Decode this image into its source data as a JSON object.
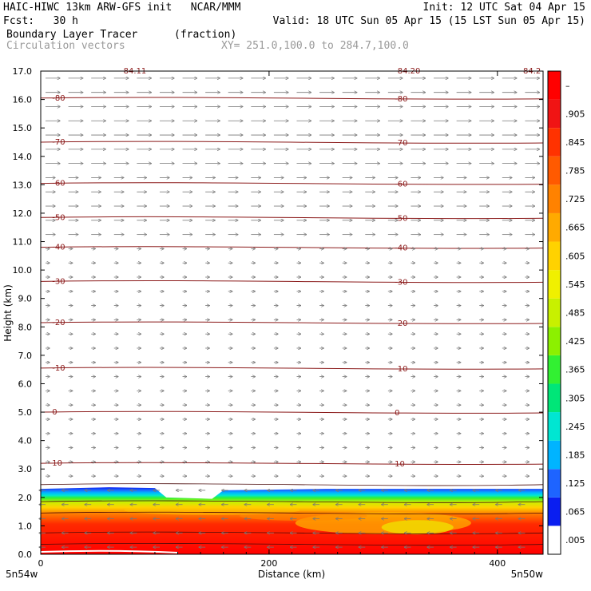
{
  "header": {
    "line1_left": "HAIC-HIWC 13km ARW-GFS init   NCAR/MMM",
    "line1_right": "Init: 12 UTC Sat 04 Apr 15",
    "line2_left": "Fcst:   30 h",
    "line2_right": "Valid: 18 UTC Sun 05 Apr 15 (15 LST Sun 05 Apr 15)",
    "field_name": "Boundary Layer Tracer",
    "field_units": "(fraction)",
    "vector_name": "Circulation vectors",
    "xy_range": "XY= 251.0,100.0 to 284.7,100.0"
  },
  "chart_data": {
    "type": "heatmap",
    "xlabel": "Distance (km)",
    "ylabel": "Height (km)",
    "xlim": [
      0,
      440
    ],
    "ylim": [
      0,
      17
    ],
    "x_ticks": [
      0,
      200,
      400
    ],
    "y_ticks": [
      "0.0",
      "1.0",
      "2.0",
      "3.0",
      "4.0",
      "5.0",
      "6.0",
      "7.0",
      "8.0",
      "9.0",
      "10.0",
      "11.0",
      "12.0",
      "13.0",
      "14.0",
      "15.0",
      "16.0",
      "17.0"
    ],
    "x_endpoint_labels": {
      "left": "5n54w",
      "right": "5n50w"
    },
    "colorbar": {
      "tick_labels": [
        ".005",
        ".065",
        ".125",
        ".185",
        ".245",
        ".305",
        ".365",
        ".425",
        ".485",
        ".545",
        ".605",
        ".665",
        ".725",
        ".785",
        ".845",
        ".905",
        "–"
      ],
      "colors": [
        "#ffffff",
        "#0a1ef0",
        "#1e64ff",
        "#00b4ff",
        "#00e6d2",
        "#00e678",
        "#32f032",
        "#8cf000",
        "#c8f000",
        "#f0f000",
        "#ffd200",
        "#ffaa00",
        "#ff8200",
        "#ff5a00",
        "#ff3200",
        "#f01414",
        "#ff0000"
      ]
    },
    "tracer_top_km": 2.3,
    "isotherms": [
      {
        "temp": "10",
        "height_km": 3.2
      },
      {
        "temp": "0",
        "height_km": 5.0
      },
      {
        "temp": "-10",
        "height_km": 6.55
      },
      {
        "temp": "-20",
        "height_km": 8.15
      },
      {
        "temp": "-30",
        "height_km": 9.6
      },
      {
        "temp": "-40",
        "height_km": 10.8
      },
      {
        "temp": "-50",
        "height_km": 11.85
      },
      {
        "temp": "-60",
        "height_km": 13.05
      },
      {
        "temp": "-70",
        "height_km": 14.5
      },
      {
        "temp": "-80",
        "height_km": 16.05
      }
    ],
    "top_labels": [
      "-84.11",
      "-84.20",
      "-84.2"
    ]
  }
}
